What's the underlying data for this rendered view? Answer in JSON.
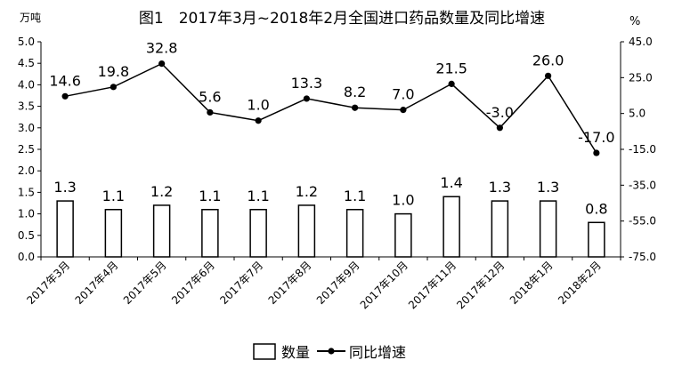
{
  "chart_data": {
    "type": "bar",
    "title": "图1　2017年3月~2018年2月全国进口药品数量及同比增速",
    "left_unit": "万吨",
    "right_unit": "%",
    "categories": [
      "2017年3月",
      "2017年4月",
      "2017年5月",
      "2017年6月",
      "2017年7月",
      "2017年8月",
      "2017年9月",
      "2017年10月",
      "2017年11月",
      "2017年12月",
      "2018年1月",
      "2018年2月"
    ],
    "left_ticks": [
      "5.0",
      "4.5",
      "4.0",
      "3.5",
      "3.0",
      "2.5",
      "2.0",
      "1.5",
      "1.0",
      "0.5",
      "0.0"
    ],
    "right_ticks": [
      "45.0",
      "25.0",
      "5.0",
      "-15.0",
      "-35.0",
      "-55.0",
      "-75.0"
    ],
    "ylim_left": [
      0,
      5
    ],
    "ylim_right": [
      -75,
      45
    ],
    "series": [
      {
        "name": "数量",
        "type": "bar",
        "axis": "left",
        "values": [
          1.3,
          1.1,
          1.2,
          1.1,
          1.1,
          1.2,
          1.1,
          1.0,
          1.4,
          1.3,
          1.3,
          0.8
        ],
        "labels": [
          "1.3",
          "1.1",
          "1.2",
          "1.1",
          "1.1",
          "1.2",
          "1.1",
          "1.0",
          "1.4",
          "1.3",
          "1.3",
          "0.8"
        ]
      },
      {
        "name": "同比增速",
        "type": "line",
        "axis": "right",
        "values": [
          14.6,
          19.8,
          32.8,
          5.6,
          1.0,
          13.3,
          8.2,
          7.0,
          21.5,
          -3.0,
          26.0,
          -17.0
        ],
        "labels": [
          "14.6",
          "19.8",
          "32.8",
          "5.6",
          "1.0",
          "13.3",
          "8.2",
          "7.0",
          "21.5",
          "-3.0",
          "26.0",
          "-17.0"
        ]
      }
    ],
    "grid": false,
    "legend_position": "bottom"
  }
}
